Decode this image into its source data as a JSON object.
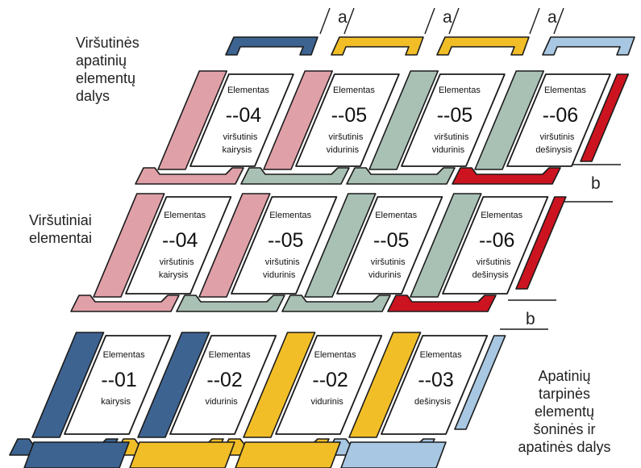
{
  "colors": {
    "blue": "#3d6391",
    "yellow": "#f1be28",
    "light_blue": "#a8c7e2",
    "pink": "#e0a0a8",
    "grey_green": "#a9c0b5",
    "red": "#cc1420",
    "outline": "#1a1a1a"
  },
  "annotations": {
    "top_left": [
      "Viršutinės",
      "apatinių",
      "elementų",
      "dalys"
    ],
    "middle_left": [
      "Viršutiniai",
      "elementai"
    ],
    "bottom_right": [
      "Apatinių",
      "tarpinės",
      "elementų",
      "šoninės ir",
      "apatinės dalys"
    ]
  },
  "dim_a": "a",
  "dim_b": "b",
  "rows": [
    {
      "name": "top",
      "cells": [
        {
          "title": "Elementas",
          "code": "--04",
          "line1": "viršutinis",
          "line2": "kairysis",
          "color": "pink"
        },
        {
          "title": "Elementas",
          "code": "--05",
          "line1": "viršutinis",
          "line2": "vidurinis",
          "color": "pink"
        },
        {
          "title": "Elementas",
          "code": "--05",
          "line1": "viršutinis",
          "line2": "vidurinis",
          "color": "grey_green"
        },
        {
          "title": "Elementas",
          "code": "--06",
          "line1": "viršutinis",
          "line2": "dešinysis",
          "color": "grey_green"
        }
      ],
      "right_strip": "red",
      "top_caps": [
        "blue",
        "yellow",
        "yellow",
        "light_blue"
      ],
      "bottom_bars": [
        "pink",
        "grey_green",
        "grey_green",
        "red"
      ]
    },
    {
      "name": "middle",
      "cells": [
        {
          "title": "Elementas",
          "code": "--04",
          "line1": "viršutinis",
          "line2": "kairysis",
          "color": "pink"
        },
        {
          "title": "Elementas",
          "code": "--05",
          "line1": "viršutinis",
          "line2": "vidurinis",
          "color": "pink"
        },
        {
          "title": "Elementas",
          "code": "--05",
          "line1": "viršutinis",
          "line2": "vidurinis",
          "color": "grey_green"
        },
        {
          "title": "Elementas",
          "code": "--06",
          "line1": "viršutinis",
          "line2": "dešinysis",
          "color": "grey_green"
        }
      ],
      "right_strip": "red",
      "bottom_bars": [
        "pink",
        "grey_green",
        "grey_green",
        "red"
      ]
    },
    {
      "name": "bottom",
      "cells": [
        {
          "title": "Elementas",
          "code": "--01",
          "line1": "kairysis",
          "line2": "",
          "color": "blue"
        },
        {
          "title": "Elementas",
          "code": "--02",
          "line1": "vidurinis",
          "line2": "",
          "color": "blue"
        },
        {
          "title": "Elementas",
          "code": "--02",
          "line1": "vidurinis",
          "line2": "",
          "color": "yellow"
        },
        {
          "title": "Elementas",
          "code": "--03",
          "line1": "dešinysis",
          "line2": "",
          "color": "yellow"
        }
      ],
      "right_strip": "light_blue",
      "bottom_bars": [
        "blue",
        "yellow",
        "yellow",
        "light_blue"
      ]
    }
  ]
}
